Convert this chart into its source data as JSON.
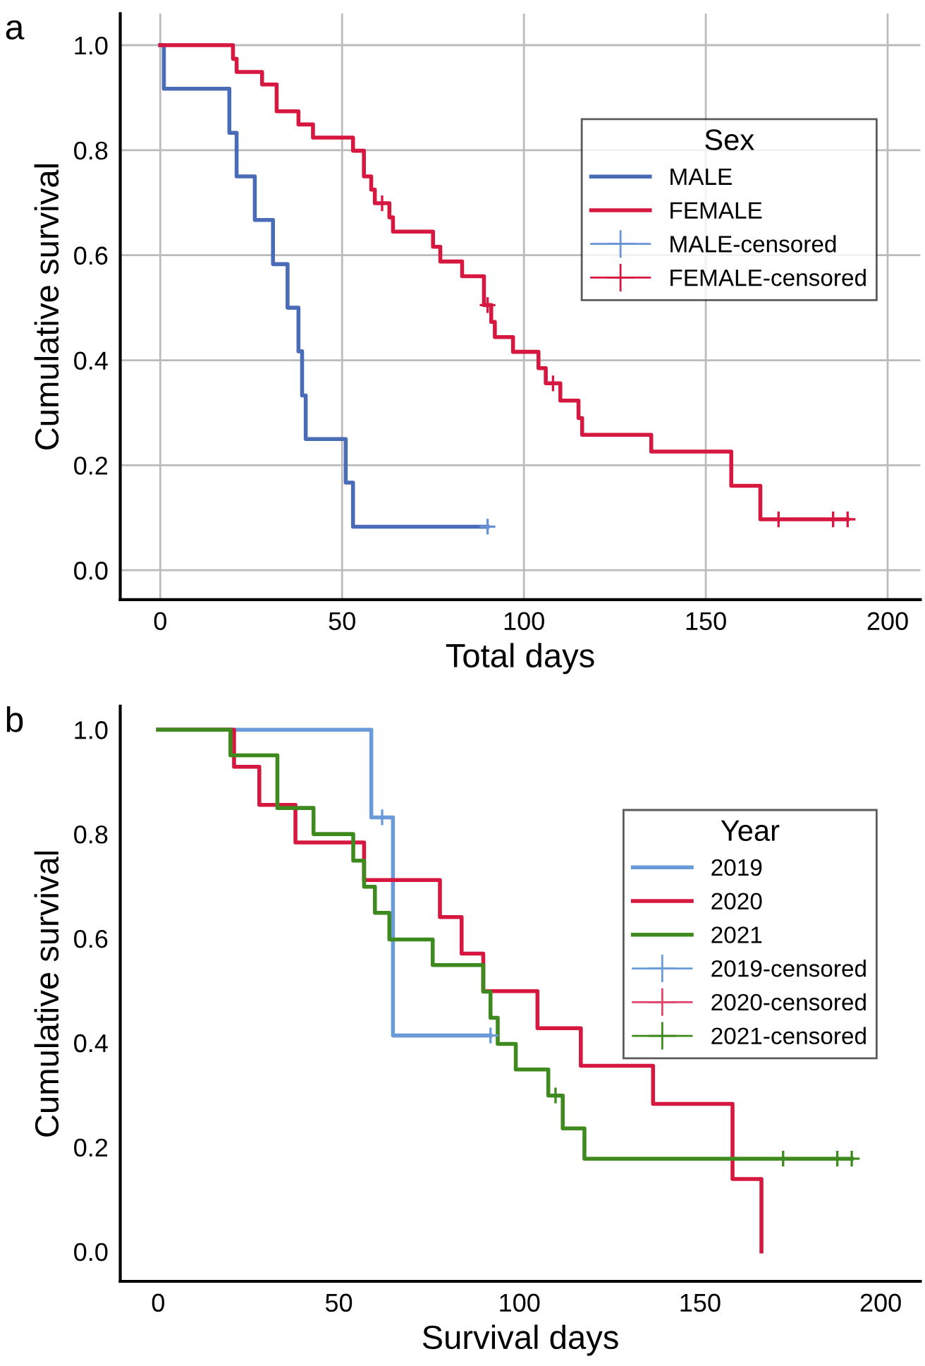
{
  "chart_data": [
    {
      "type": "step",
      "annotations": [
        "a"
      ],
      "xlabel": "Total days",
      "ylabel": "Cumulative survival",
      "legend_title": "Sex",
      "legend": "top right",
      "grid": true,
      "xlim": [
        -11,
        209
      ],
      "ylim": [
        -0.056,
        1.06
      ],
      "xticks": [
        0,
        50,
        100,
        150,
        200
      ],
      "yticks": [
        {
          "value": 0,
          "label": "0.0"
        },
        {
          "value": 0.2,
          "label": "0.2"
        },
        {
          "value": 0.4,
          "label": "0.4"
        },
        {
          "value": 0.6,
          "label": "0.6"
        },
        {
          "value": 0.8,
          "label": "0.8"
        },
        {
          "value": 1,
          "label": "1.0"
        }
      ],
      "series": [
        {
          "name": "MALE",
          "color": "#4a6bb5",
          "x": [
            0,
            1,
            19,
            21,
            26,
            31,
            35,
            38,
            39,
            40,
            51,
            53,
            90
          ],
          "values": [
            1,
            0.917,
            0.833,
            0.75,
            0.667,
            0.583,
            0.5,
            0.417,
            0.333,
            0.25,
            0.167,
            0.083,
            0.083
          ]
        },
        {
          "name": "FEMALE",
          "color": "#d6173f",
          "x": [
            0,
            20,
            21,
            28,
            32,
            38,
            42,
            53,
            56,
            58,
            59,
            63,
            64,
            75,
            77,
            83,
            89,
            91,
            92,
            97,
            104,
            106,
            110,
            115,
            116,
            135,
            157,
            165,
            189
          ],
          "values": [
            1,
            0.974,
            0.949,
            0.925,
            0.874,
            0.849,
            0.824,
            0.799,
            0.75,
            0.725,
            0.699,
            0.672,
            0.645,
            0.616,
            0.588,
            0.56,
            0.505,
            0.473,
            0.444,
            0.416,
            0.385,
            0.356,
            0.323,
            0.29,
            0.258,
            0.226,
            0.161,
            0.097,
            0.097
          ]
        },
        {
          "name": "MALE-censored",
          "type": "scatter",
          "marker": "cross",
          "color": "#6a93d6",
          "x": [
            90
          ],
          "values": [
            0.083
          ]
        },
        {
          "name": "FEMALE-censored",
          "type": "scatter",
          "marker": "cross",
          "color": "#d6173f",
          "x": [
            61,
            90,
            108,
            170,
            185,
            189
          ],
          "values": [
            0.699,
            0.505,
            0.356,
            0.097,
            0.097,
            0.097
          ]
        }
      ]
    },
    {
      "type": "step",
      "annotations": [
        "b"
      ],
      "xlabel": "Survival days",
      "ylabel": "Cumulative survival",
      "legend_title": "Year",
      "legend": "top right",
      "grid": false,
      "xlim": [
        -10.5,
        211
      ],
      "ylim": [
        -0.057,
        1.045
      ],
      "xticks": [
        0,
        50,
        100,
        150,
        200
      ],
      "yticks": [
        {
          "value": 0,
          "label": "0.0"
        },
        {
          "value": 0.2,
          "label": "0.2"
        },
        {
          "value": 0.4,
          "label": "0.4"
        },
        {
          "value": 0.6,
          "label": "0.6"
        },
        {
          "value": 0.8,
          "label": "0.8"
        },
        {
          "value": 1,
          "label": "1.0"
        }
      ],
      "series": [
        {
          "name": "2019",
          "color": "#6a9bd8",
          "x": [
            0,
            59,
            65,
            92
          ],
          "values": [
            1,
            0.832,
            0.414,
            0.414
          ]
        },
        {
          "name": "2020",
          "color": "#d6173f",
          "x": [
            0,
            21,
            28,
            38,
            57,
            78,
            84,
            90,
            105,
            117,
            137,
            159,
            167
          ],
          "values": [
            1,
            0.929,
            0.856,
            0.784,
            0.712,
            0.641,
            0.571,
            0.499,
            0.428,
            0.356,
            0.283,
            0.139,
            0
          ]
        },
        {
          "name": "2021",
          "color": "#3f8a1f",
          "x": [
            0,
            20,
            33,
            43,
            54,
            57,
            60,
            64,
            76,
            90,
            92,
            94,
            99,
            108,
            112,
            118,
            192
          ],
          "values": [
            1,
            0.951,
            0.85,
            0.8,
            0.749,
            0.699,
            0.649,
            0.598,
            0.549,
            0.498,
            0.448,
            0.398,
            0.349,
            0.299,
            0.236,
            0.178,
            0.178
          ]
        },
        {
          "name": "2019-censored",
          "type": "scatter",
          "marker": "cross",
          "color": "#6a9bd8",
          "x": [
            62,
            92
          ],
          "values": [
            0.832,
            0.414
          ]
        },
        {
          "name": "2020-censored",
          "type": "scatter",
          "marker": "cross",
          "color": "#e0446a"
        },
        {
          "name": "2021-censored",
          "type": "scatter",
          "marker": "cross",
          "color": "#3f8a1f",
          "x": [
            110,
            173,
            188,
            192
          ],
          "values": [
            0.299,
            0.178,
            0.178,
            0.178
          ]
        }
      ]
    }
  ]
}
